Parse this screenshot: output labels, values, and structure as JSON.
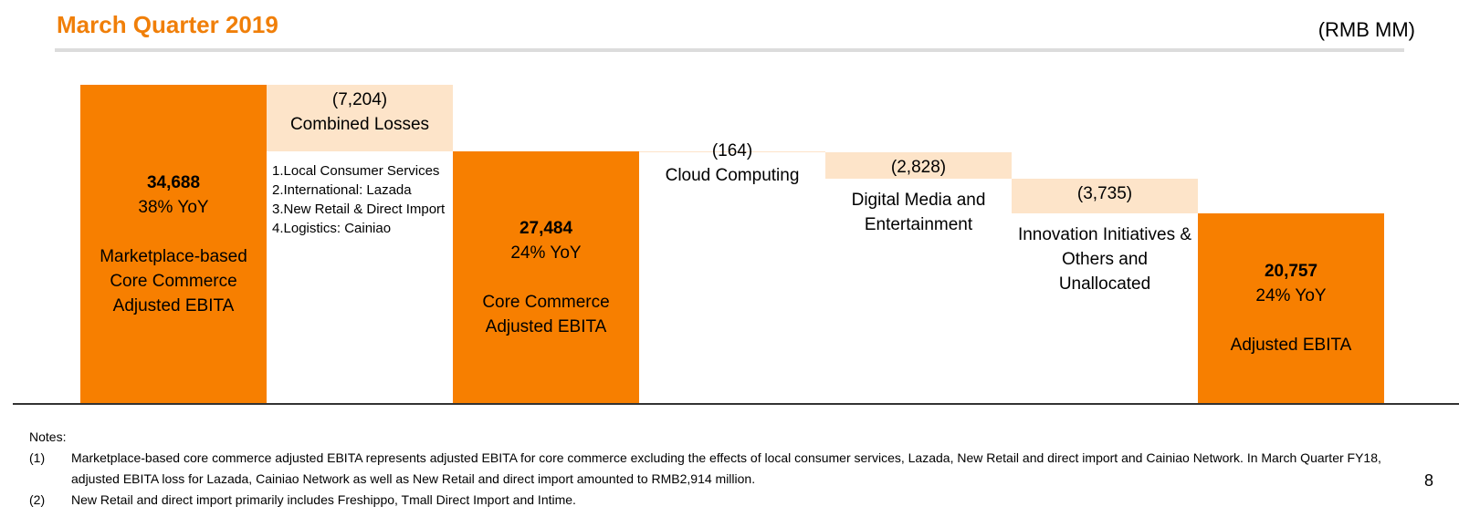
{
  "chart_data": {
    "type": "waterfall",
    "title": "March Quarter 2019",
    "unit_label": "(RMB MM)",
    "categories": [
      "Marketplace-based Core Commerce Adjusted EBITA",
      "Combined Losses",
      "Core Commerce Adjusted EBITA",
      "Cloud Computing",
      "Digital Media and Entertainment",
      "Innovation Initiatives & Others and Unallocated",
      "Adjusted EBITA"
    ],
    "measures": [
      "absolute",
      "relative",
      "total",
      "relative",
      "relative",
      "relative",
      "total"
    ],
    "values": [
      34688,
      -7204,
      27484,
      -164,
      -2828,
      -3735,
      20757
    ],
    "value_labels": [
      "34,688",
      "(7,204)",
      "27,484",
      "(164)",
      "(2,828)",
      "(3,735)",
      "20,757"
    ],
    "yoy_labels": [
      "38% YoY",
      null,
      "24% YoY",
      null,
      null,
      null,
      "24% YoY"
    ],
    "total_color": "#f77f00",
    "relative_color": "#fde4c9",
    "ylim": [
      0,
      35000
    ],
    "annotation": [
      "1.Local Consumer Services",
      "2.International: Lazada",
      "3.New Retail & Direct Import",
      "4.Logistics: Cainiao"
    ],
    "notes_title": "Notes:",
    "notes": [
      {
        "marker": "(1)",
        "text": "Marketplace-based core commerce adjusted EBITA represents adjusted EBITA for core commerce excluding the effects of local consumer services, Lazada, New Retail and direct import and Cainiao Network. In March Quarter FY18, adjusted EBITA loss for Lazada, Cainiao Network as well as New Retail and direct import amounted to RMB2,914 million."
      },
      {
        "marker": "(2)",
        "text": "New Retail and direct import primarily includes Freshippo, Tmall Direct Import and Intime."
      }
    ],
    "page_number": "8"
  }
}
